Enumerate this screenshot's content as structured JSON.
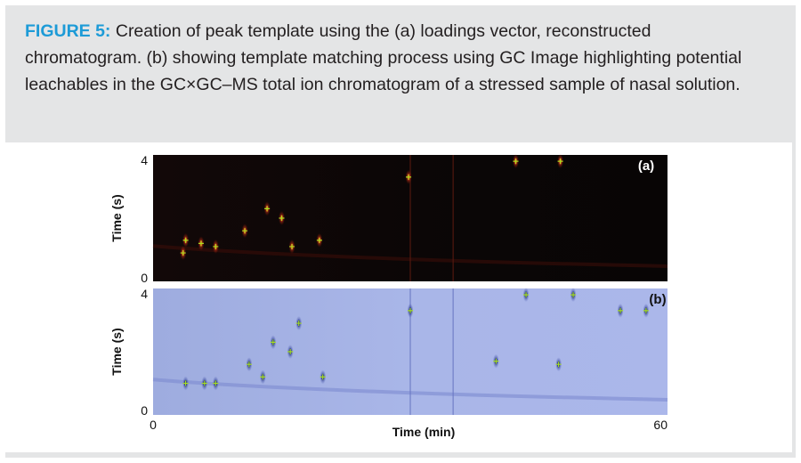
{
  "caption": {
    "figure_label": "FIGURE 5:",
    "text": " Creation of peak template using the (a) loadings vector, reconstructed chromatogram. (b) showing template matching process using GC Image highlighting potential leachables in the GC×GC–MS total ion chromatogram of a stressed sample of nasal solution."
  },
  "colors": {
    "figure_label": "#1d9bd7",
    "panel_a_background": "#0a0606",
    "panel_b_background": "#a7b4e8",
    "panel_a_peak": "#e0331c",
    "panel_b_peak": "#1e2a8a",
    "marker": "#a8e020"
  },
  "chart_data": [
    {
      "type": "heatmap",
      "panel_label": "(a)",
      "ylabel": "Time (s)",
      "xlim": [
        0,
        60
      ],
      "ylim": [
        0,
        4
      ],
      "y_ticks": [
        "4",
        "0"
      ],
      "grid": false,
      "peaks": [
        {
          "x": 3.5,
          "y": 0.9
        },
        {
          "x": 3.8,
          "y": 1.3
        },
        {
          "x": 5.6,
          "y": 1.2
        },
        {
          "x": 7.3,
          "y": 1.1
        },
        {
          "x": 10.7,
          "y": 1.6
        },
        {
          "x": 13.3,
          "y": 2.3
        },
        {
          "x": 15.0,
          "y": 2.0
        },
        {
          "x": 16.2,
          "y": 1.1
        },
        {
          "x": 19.4,
          "y": 1.3
        },
        {
          "x": 29.8,
          "y": 3.3
        },
        {
          "x": 42.3,
          "y": 3.8
        },
        {
          "x": 47.5,
          "y": 3.8
        }
      ]
    },
    {
      "type": "heatmap",
      "panel_label": "(b)",
      "xlabel": "Time (min)",
      "ylabel": "Time (s)",
      "xlim": [
        0,
        60
      ],
      "ylim": [
        0,
        4
      ],
      "y_ticks": [
        "4",
        "0"
      ],
      "x_ticks": [
        "0",
        "60"
      ],
      "grid": false,
      "peaks": [
        {
          "x": 3.8,
          "y": 1.0
        },
        {
          "x": 6.0,
          "y": 1.0
        },
        {
          "x": 7.3,
          "y": 1.0
        },
        {
          "x": 11.2,
          "y": 1.6
        },
        {
          "x": 12.8,
          "y": 1.2
        },
        {
          "x": 14.0,
          "y": 2.3
        },
        {
          "x": 16.0,
          "y": 2.0
        },
        {
          "x": 17.0,
          "y": 2.9
        },
        {
          "x": 19.8,
          "y": 1.2
        },
        {
          "x": 30.0,
          "y": 3.3
        },
        {
          "x": 40.0,
          "y": 1.7
        },
        {
          "x": 43.5,
          "y": 3.8
        },
        {
          "x": 47.3,
          "y": 1.6
        },
        {
          "x": 49.0,
          "y": 3.8
        },
        {
          "x": 54.5,
          "y": 3.3
        },
        {
          "x": 57.5,
          "y": 3.3
        }
      ]
    }
  ]
}
